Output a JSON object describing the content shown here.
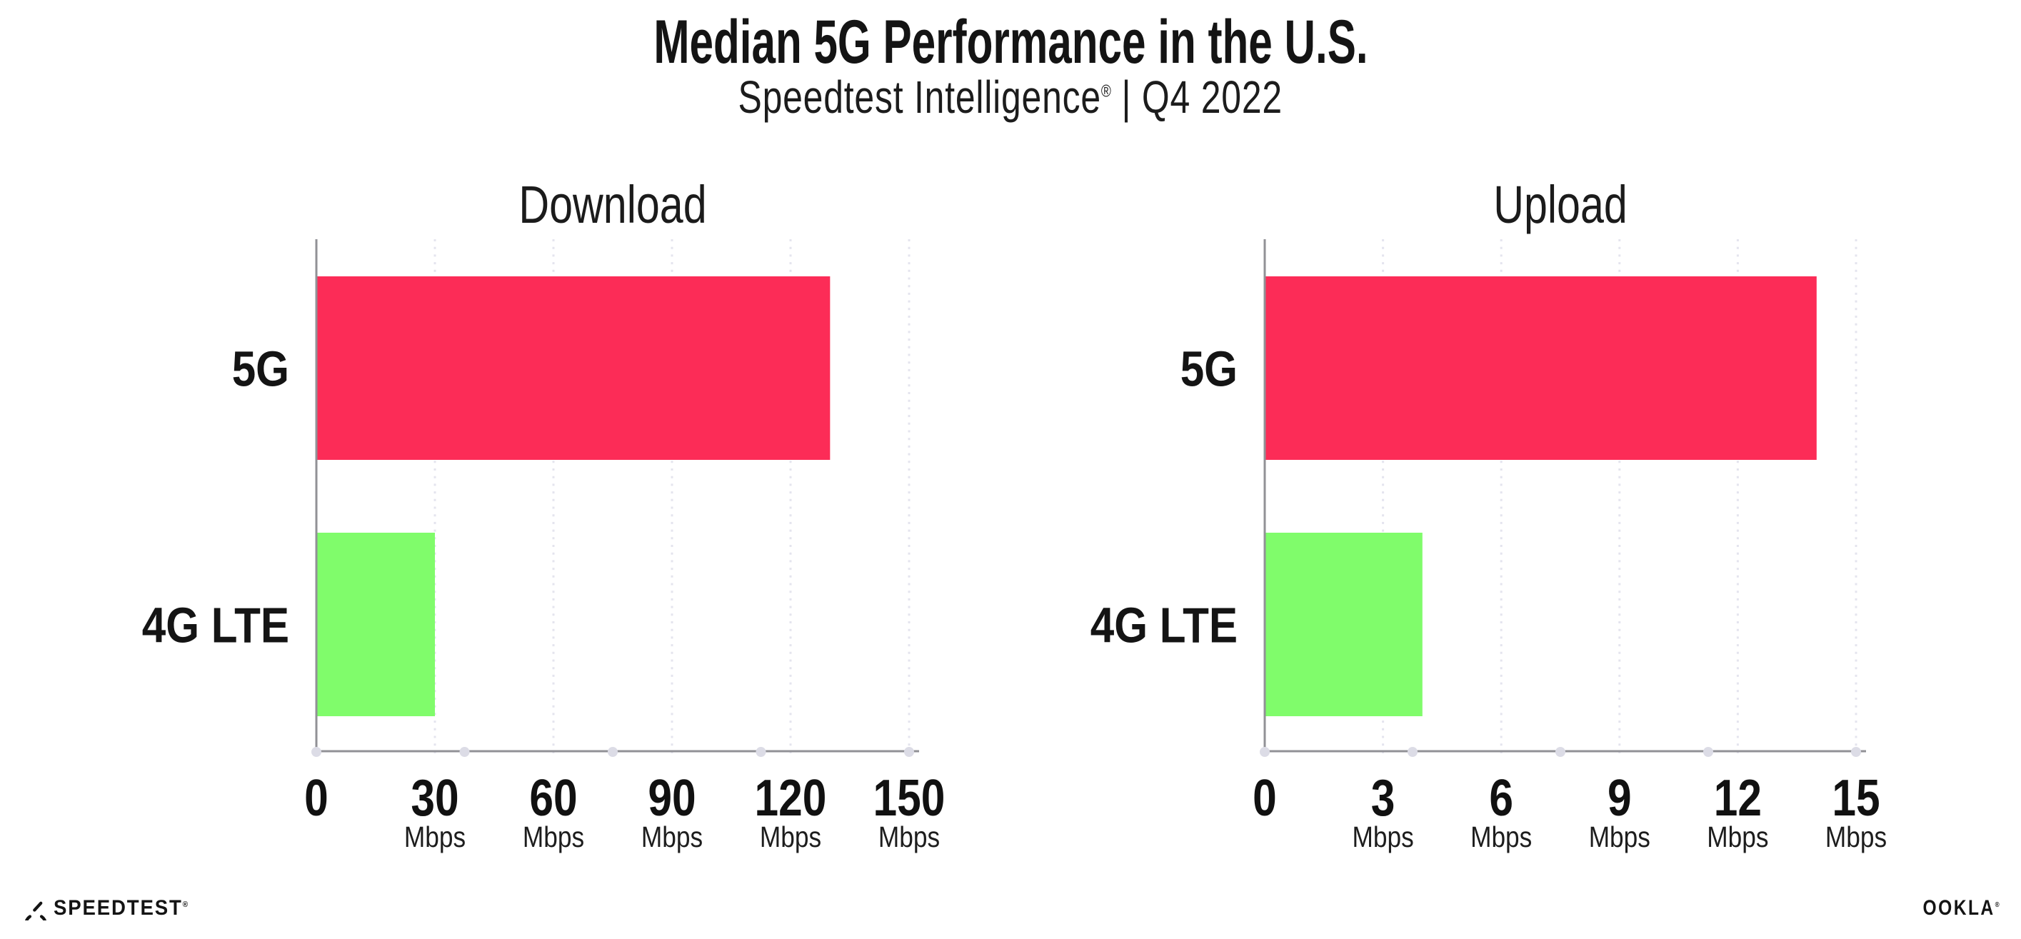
{
  "header": {
    "title": "Median 5G Performance in the U.S.",
    "subtitle_brand": "Speedtest Intelligence",
    "subtitle_reg": "®",
    "subtitle_rest": " | Q4 2022"
  },
  "footer": {
    "speedtest_logo_text": "SPEEDTEST",
    "speedtest_reg": "®",
    "ookla_logo_text": "OOKLA",
    "ookla_reg": "®"
  },
  "colors": {
    "bar_5g": "#FC2C57",
    "bar_4g": "#80FC6B",
    "axis": "#919196",
    "gridline": "#E4E4EE",
    "axis_dot": "#DCDCE6",
    "text": "#141414"
  },
  "chart_data": [
    {
      "type": "bar",
      "orientation": "horizontal",
      "title": "Download",
      "categories": [
        "5G",
        "4G LTE"
      ],
      "values": [
        130,
        30
      ],
      "unit": "Mbps",
      "xlim": [
        0,
        150
      ],
      "xticks": [
        0,
        30,
        60,
        90,
        120,
        150
      ],
      "grid": "vertical-dotted",
      "legend": "none",
      "bar_colors": [
        "#FC2C57",
        "#80FC6B"
      ]
    },
    {
      "type": "bar",
      "orientation": "horizontal",
      "title": "Upload",
      "categories": [
        "5G",
        "4G LTE"
      ],
      "values": [
        14,
        4
      ],
      "unit": "Mbps",
      "xlim": [
        0,
        15
      ],
      "xticks": [
        0,
        3,
        6,
        9,
        12,
        15
      ],
      "grid": "vertical-dotted",
      "legend": "none",
      "bar_colors": [
        "#FC2C57",
        "#80FC6B"
      ]
    }
  ]
}
